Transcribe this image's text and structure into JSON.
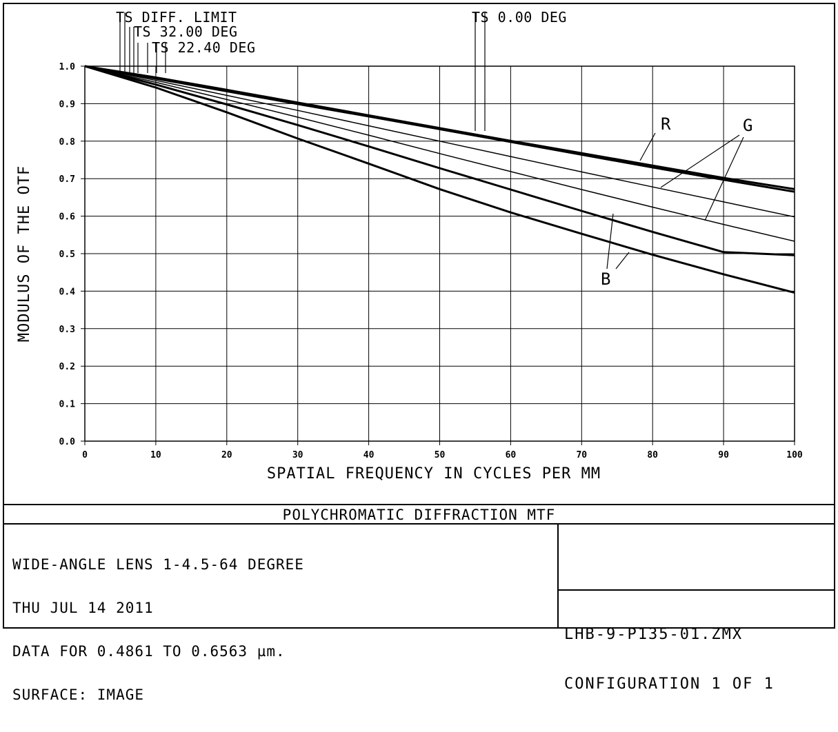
{
  "chart_data": {
    "type": "line",
    "title": "POLYCHROMATIC DIFFRACTION MTF",
    "xlabel": "SPATIAL FREQUENCY IN CYCLES PER MM",
    "ylabel": "MODULUS OF THE OTF",
    "xlim": [
      0,
      100
    ],
    "ylim": [
      0,
      1
    ],
    "x_ticks": [
      "0",
      "10",
      "20",
      "30",
      "40",
      "50",
      "60",
      "70",
      "80",
      "90",
      "100"
    ],
    "y_ticks": [
      "0.0",
      "0.1",
      "0.2",
      "0.3",
      "0.4",
      "0.5",
      "0.6",
      "0.7",
      "0.8",
      "0.9",
      "1.0"
    ],
    "grid": true,
    "x": [
      0,
      10,
      20,
      30,
      40,
      50,
      60,
      70,
      80,
      90,
      100
    ],
    "series": [
      {
        "values": [
          1.0,
          0.97,
          0.937,
          0.903,
          0.869,
          0.835,
          0.801,
          0.768,
          0.735,
          0.702,
          0.672
        ],
        "width": 3
      },
      {
        "values": [
          1.0,
          0.967,
          0.933,
          0.899,
          0.866,
          0.832,
          0.798,
          0.764,
          0.73,
          0.697,
          0.665
        ],
        "width": 3
      },
      {
        "values": [
          1.0,
          0.962,
          0.922,
          0.882,
          0.841,
          0.8,
          0.759,
          0.718,
          0.678,
          0.638,
          0.598
        ],
        "width": 1.5
      },
      {
        "values": [
          1.0,
          0.957,
          0.911,
          0.864,
          0.816,
          0.767,
          0.719,
          0.671,
          0.624,
          0.578,
          0.533
        ],
        "width": 1.5
      },
      {
        "values": [
          1.0,
          0.951,
          0.898,
          0.843,
          0.786,
          0.728,
          0.671,
          0.614,
          0.558,
          0.504,
          0.496
        ],
        "width": 3
      },
      {
        "values": [
          1.0,
          0.943,
          0.877,
          0.807,
          0.74,
          0.672,
          0.61,
          0.553,
          0.497,
          0.445,
          0.396
        ],
        "width": 3
      }
    ],
    "legend_labels": [
      {
        "text": "TS DIFF. LIMIT",
        "x": 5.0
      },
      {
        "text": "TS 32.00 DEG",
        "x": 6.4
      },
      {
        "text": "TS 22.40 DEG",
        "x": 8.8
      },
      {
        "text": "TS 0.00 DEG",
        "x": 55.0
      }
    ],
    "annotations": [
      {
        "text": "R"
      },
      {
        "text": "G"
      },
      {
        "text": "B"
      }
    ]
  },
  "info": {
    "line1": "WIDE-ANGLE LENS 1-4.5-64 DEGREE",
    "line2": "THU JUL 14 2011",
    "line3": "DATA FOR 0.4861 TO 0.6563 µm.",
    "line4": "SURFACE: IMAGE"
  },
  "file": {
    "name": "LHB-9-P135-01.ZMX",
    "config": "CONFIGURATION 1 OF 1"
  }
}
